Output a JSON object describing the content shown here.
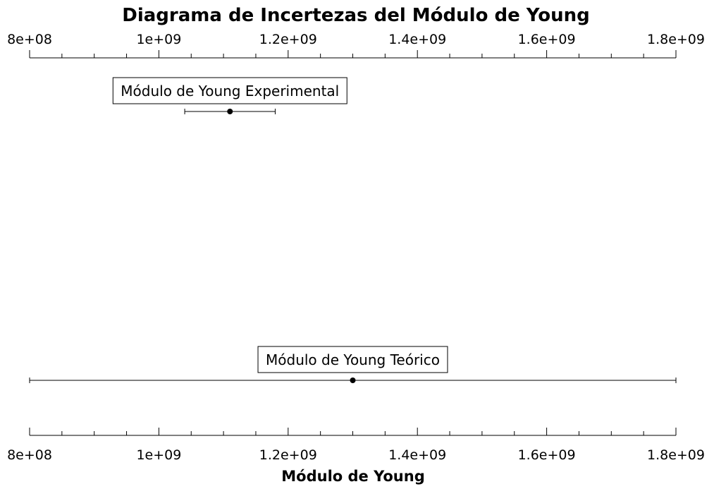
{
  "chart_data": {
    "type": "scatter",
    "title": "Diagrama de Incertezas del Módulo de Young",
    "xlabel": "Módulo de Young",
    "xlim": [
      800000000,
      1800000000
    ],
    "major_ticks": [
      {
        "value": 800000000,
        "label": "8e+08"
      },
      {
        "value": 1000000000,
        "label": "1e+09"
      },
      {
        "value": 1200000000,
        "label": "1.2e+09"
      },
      {
        "value": 1400000000,
        "label": "1.4e+09"
      },
      {
        "value": 1600000000,
        "label": "1.6e+09"
      },
      {
        "value": 1800000000,
        "label": "1.8e+09"
      }
    ],
    "minor_tick_step": 50000000,
    "grid": false,
    "series": [
      {
        "name": "Módulo de Young Experimental",
        "value": 1110000000,
        "lower": 1040000000,
        "upper": 1180000000
      },
      {
        "name": "Módulo de Young Teórico",
        "value": 1300000000,
        "lower": 800000000,
        "upper": 1800000000
      }
    ]
  }
}
